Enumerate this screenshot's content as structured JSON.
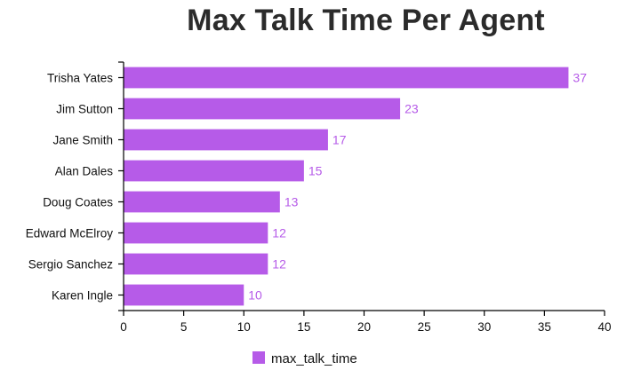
{
  "chart_data": {
    "type": "bar",
    "orientation": "horizontal",
    "title": "Max Talk Time Per Agent",
    "categories": [
      "Trisha Yates",
      "Jim Sutton",
      "Jane Smith",
      "Alan Dales",
      "Doug Coates",
      "Edward McElroy",
      "Sergio Sanchez",
      "Karen Ingle"
    ],
    "series": [
      {
        "name": "max_talk_time",
        "values": [
          37,
          23,
          17,
          15,
          13,
          12,
          12,
          10
        ]
      }
    ],
    "xlim": [
      0,
      40
    ],
    "xticks": [
      0,
      5,
      10,
      15,
      20,
      25,
      30,
      35,
      40
    ],
    "grid": false,
    "legend_position": "bottom-center",
    "colors": {
      "bar": "#b65be8",
      "value_label": "#b65be8",
      "axis": "#000000"
    }
  }
}
